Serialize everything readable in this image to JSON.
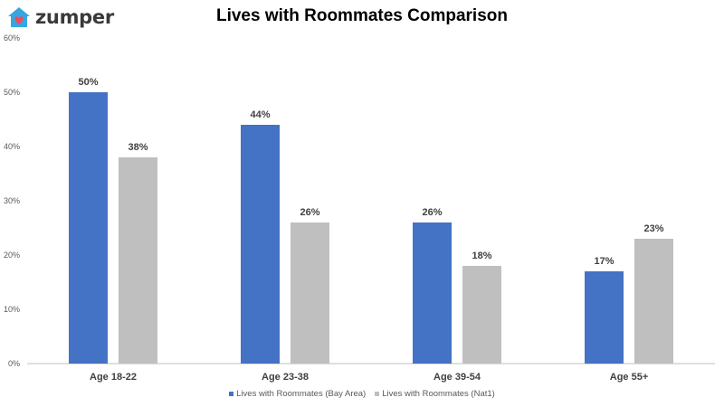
{
  "logo": {
    "text": "zumper",
    "icon": "house-icon",
    "icon_color": "#35a7e0",
    "heart_color": "#ef4b5f"
  },
  "chart_data": {
    "type": "bar",
    "title": "Lives with Roommates Comparison",
    "categories": [
      "Age 18-22",
      "Age 23-38",
      "Age 39-54",
      "Age 55+"
    ],
    "series": [
      {
        "name": "Lives with Roommates (Bay Area)",
        "color": "#4472c4",
        "values": [
          50,
          44,
          26,
          17
        ],
        "labels": [
          "50%",
          "44%",
          "26%",
          "17%"
        ]
      },
      {
        "name": "Lives with Roommates (Nat1)",
        "color": "#bfbfbf",
        "values": [
          38,
          26,
          18,
          23
        ],
        "labels": [
          "38%",
          "26%",
          "18%",
          "23%"
        ]
      }
    ],
    "ylim": [
      0,
      60
    ],
    "yticks": [
      0,
      10,
      20,
      30,
      40,
      50,
      60
    ],
    "ytick_labels": [
      "0%",
      "10%",
      "20%",
      "30%",
      "40%",
      "50%",
      "60%"
    ],
    "xlabel": "",
    "ylabel": "",
    "grid": false,
    "legend_position": "bottom"
  }
}
